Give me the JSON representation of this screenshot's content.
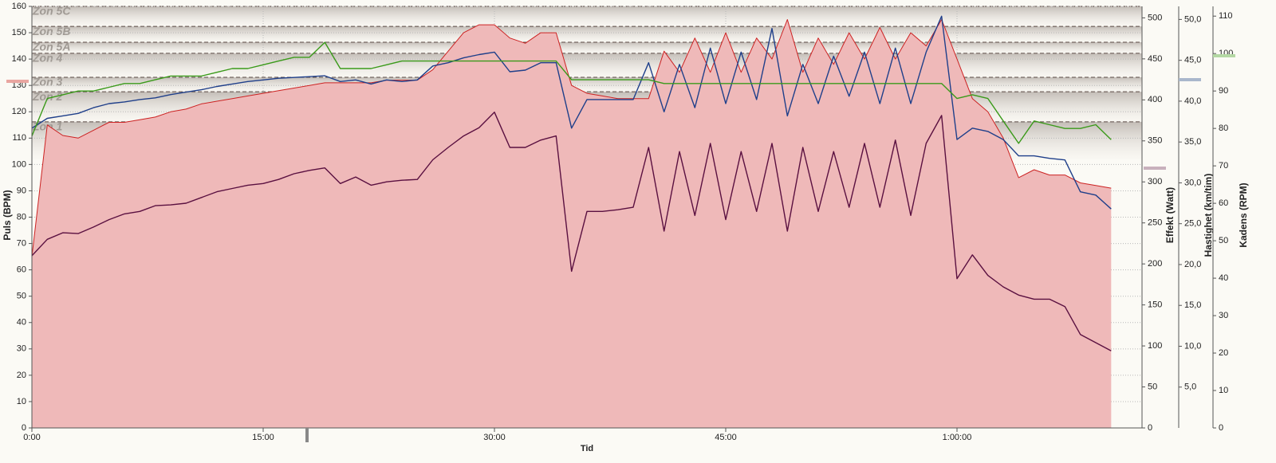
{
  "chart_data": {
    "type": "line",
    "xlabel": "Tid",
    "xlim": [
      0,
      72
    ],
    "xticks": [
      {
        "value": 0,
        "label": "0:00"
      },
      {
        "value": 15,
        "label": "15:00"
      },
      {
        "value": 30,
        "label": "30:00"
      },
      {
        "value": 45,
        "label": "45:00"
      },
      {
        "value": 60,
        "label": "1:00:00"
      }
    ],
    "ylim": [
      0,
      160
    ],
    "yticks": [
      0,
      10,
      20,
      30,
      40,
      50,
      60,
      70,
      80,
      90,
      100,
      110,
      120,
      130,
      140,
      150,
      160
    ],
    "y2lim": [
      0,
      514
    ],
    "y2ticks": [
      0,
      50,
      100,
      150,
      200,
      250,
      300,
      350,
      400,
      450,
      500
    ],
    "y3lim": [
      0,
      51.6
    ],
    "y3ticks": [
      {
        "value": 5,
        "label": "5,0"
      },
      {
        "value": 10,
        "label": "10,0"
      },
      {
        "value": 15,
        "label": "15,0"
      },
      {
        "value": 20,
        "label": "20,0"
      },
      {
        "value": 25,
        "label": "25,0"
      },
      {
        "value": 30,
        "label": "30,0"
      },
      {
        "value": 35,
        "label": "35,0"
      },
      {
        "value": 40,
        "label": "40,0"
      },
      {
        "value": 45,
        "label": "45,0"
      },
      {
        "value": 50,
        "label": "50,0"
      }
    ],
    "y4lim": [
      0,
      112.6
    ],
    "y4ticks": [
      0,
      10,
      20,
      30,
      40,
      50,
      60,
      70,
      80,
      90,
      100,
      110
    ],
    "grid": true,
    "zones": [
      {
        "name": "Zon 5C",
        "min": 152.4,
        "max": 160
      },
      {
        "name": "Zon 5B",
        "min": 146.4,
        "max": 152.4
      },
      {
        "name": "Zon 5A",
        "min": 142.2,
        "max": 146.4
      },
      {
        "name": "Zon 4",
        "min": 133.1,
        "max": 142.2
      },
      {
        "name": "Zon 3",
        "min": 127.6,
        "max": 133.1
      },
      {
        "name": "Zon 2",
        "min": 116.2,
        "max": 127.6
      },
      {
        "name": "Zon 1",
        "min": 102,
        "max": 116.2
      }
    ],
    "x": [
      0,
      1,
      2,
      3,
      4,
      5,
      6,
      7,
      8,
      9,
      10,
      11,
      12,
      13,
      14,
      15,
      16,
      17,
      18,
      19,
      20,
      21,
      22,
      23,
      24,
      25,
      26,
      27,
      28,
      29,
      30,
      31,
      32,
      33,
      34,
      35,
      36,
      37,
      38,
      39,
      40,
      41,
      42,
      43,
      44,
      45,
      46,
      47,
      48,
      49,
      50,
      51,
      52,
      53,
      54,
      55,
      56,
      57,
      58,
      59,
      60,
      61,
      62,
      63,
      64,
      65,
      66,
      67,
      68,
      69,
      70
    ],
    "series": [
      {
        "name": "Puls (BPM)",
        "color": "#cc2222",
        "fill": "#efb9b9",
        "axis": "y",
        "values": [
          65,
          115,
          111,
          110,
          113,
          116,
          116,
          117,
          118,
          120,
          121,
          123,
          124,
          125,
          126,
          127,
          128,
          129,
          130,
          131,
          131,
          131,
          131,
          132,
          132,
          132,
          136,
          143,
          150,
          153,
          153,
          148,
          146,
          150,
          150,
          130,
          127,
          126,
          125,
          125,
          125,
          143,
          135,
          148,
          135,
          150,
          135,
          148,
          140,
          155,
          135,
          148,
          138,
          150,
          140,
          152,
          140,
          150,
          145,
          155,
          140,
          125,
          120,
          110,
          95,
          98,
          96,
          96,
          93,
          92,
          91
        ]
      },
      {
        "name": "Effekt (Watt)",
        "color": "#5a1040",
        "axis": "y2",
        "values": [
          210,
          230,
          238,
          237,
          245,
          254,
          261,
          264,
          271,
          272,
          274,
          281,
          288,
          292,
          296,
          298,
          303,
          310,
          314,
          317,
          298,
          306,
          296,
          300,
          302,
          303,
          327,
          342,
          356,
          366,
          385,
          342,
          342,
          351,
          356,
          191,
          264,
          264,
          266,
          269,
          342,
          240,
          337,
          259,
          347,
          254,
          337,
          264,
          347,
          240,
          342,
          264,
          337,
          269,
          347,
          269,
          351,
          259,
          347,
          381,
          182,
          211,
          186,
          172,
          162,
          157,
          157,
          148,
          114,
          104,
          94
        ]
      },
      {
        "name": "Hastighet (km/tim)",
        "color": "#1f3f8a",
        "axis": "y3",
        "values": [
          36.7,
          37.9,
          38.2,
          38.5,
          39.2,
          39.7,
          39.9,
          40.2,
          40.4,
          40.8,
          41.1,
          41.4,
          41.8,
          42.1,
          42.4,
          42.6,
          42.8,
          42.9,
          43.0,
          43.1,
          42.4,
          42.6,
          42.1,
          42.6,
          42.4,
          42.6,
          44.3,
          44.7,
          45.3,
          45.7,
          46.0,
          43.6,
          43.8,
          44.7,
          44.7,
          36.7,
          40.2,
          40.2,
          40.2,
          40.2,
          44.7,
          38.7,
          44.5,
          39.2,
          46.5,
          39.7,
          46.0,
          40.2,
          48.9,
          38.2,
          44.5,
          39.7,
          45.5,
          40.6,
          46.0,
          39.7,
          46.5,
          39.7,
          46.0,
          50.4,
          35.3,
          36.7,
          36.3,
          35.3,
          33.3,
          33.3,
          33.0,
          32.8,
          28.9,
          28.5,
          26.8
        ]
      },
      {
        "name": "Kadens (RPM)",
        "color": "#3a9a1a",
        "axis": "y4",
        "values": [
          78,
          88,
          89,
          90,
          90,
          91,
          92,
          92,
          93,
          94,
          94,
          94,
          95,
          96,
          96,
          97,
          98,
          99,
          99,
          103,
          96,
          96,
          96,
          97,
          98,
          98,
          98,
          98,
          98,
          98,
          98,
          98,
          98,
          98,
          98,
          93,
          93,
          93,
          93,
          93,
          93,
          92,
          92,
          92,
          92,
          92,
          92,
          92,
          92,
          92,
          92,
          92,
          92,
          92,
          92,
          92,
          92,
          92,
          92,
          92,
          88,
          89,
          88,
          82,
          76,
          82,
          81,
          80,
          80,
          81,
          77
        ]
      }
    ]
  }
}
